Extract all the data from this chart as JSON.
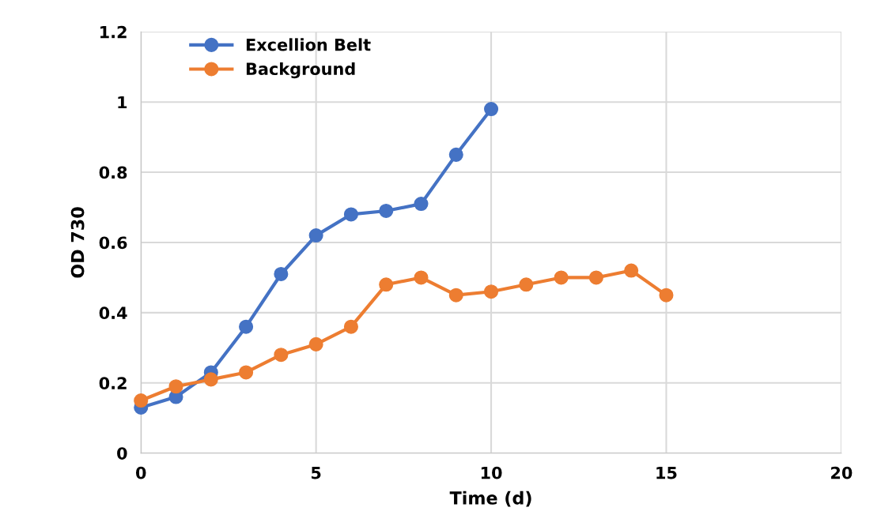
{
  "chart_data": {
    "type": "line",
    "xlabel": "Time (d)",
    "ylabel": "OD 730",
    "xlim": [
      0,
      20
    ],
    "xticks": [
      0,
      5,
      10,
      15,
      20
    ],
    "ylim": [
      0,
      1.2
    ],
    "yticks": [
      0,
      0.2,
      0.4,
      0.6,
      0.8,
      1,
      1.2
    ],
    "grid": true,
    "legend": "top left",
    "marker": "circle",
    "line_style": "solid",
    "series": [
      {
        "name": "Excellion Belt",
        "color": "#4472c4",
        "x": [
          0,
          1,
          2,
          3,
          4,
          5,
          6,
          7,
          8,
          9,
          10
        ],
        "values": [
          0.13,
          0.16,
          0.23,
          0.36,
          0.51,
          0.62,
          0.68,
          0.69,
          0.71,
          0.85,
          0.98
        ]
      },
      {
        "name": "Background",
        "color": "#ed7d31",
        "x": [
          0,
          1,
          2,
          3,
          4,
          5,
          6,
          7,
          8,
          9,
          10,
          11,
          12,
          13,
          14,
          15
        ],
        "values": [
          0.15,
          0.19,
          0.21,
          0.23,
          0.28,
          0.31,
          0.36,
          0.48,
          0.5,
          0.45,
          0.46,
          0.48,
          0.5,
          0.5,
          0.52,
          0.45
        ]
      }
    ]
  }
}
